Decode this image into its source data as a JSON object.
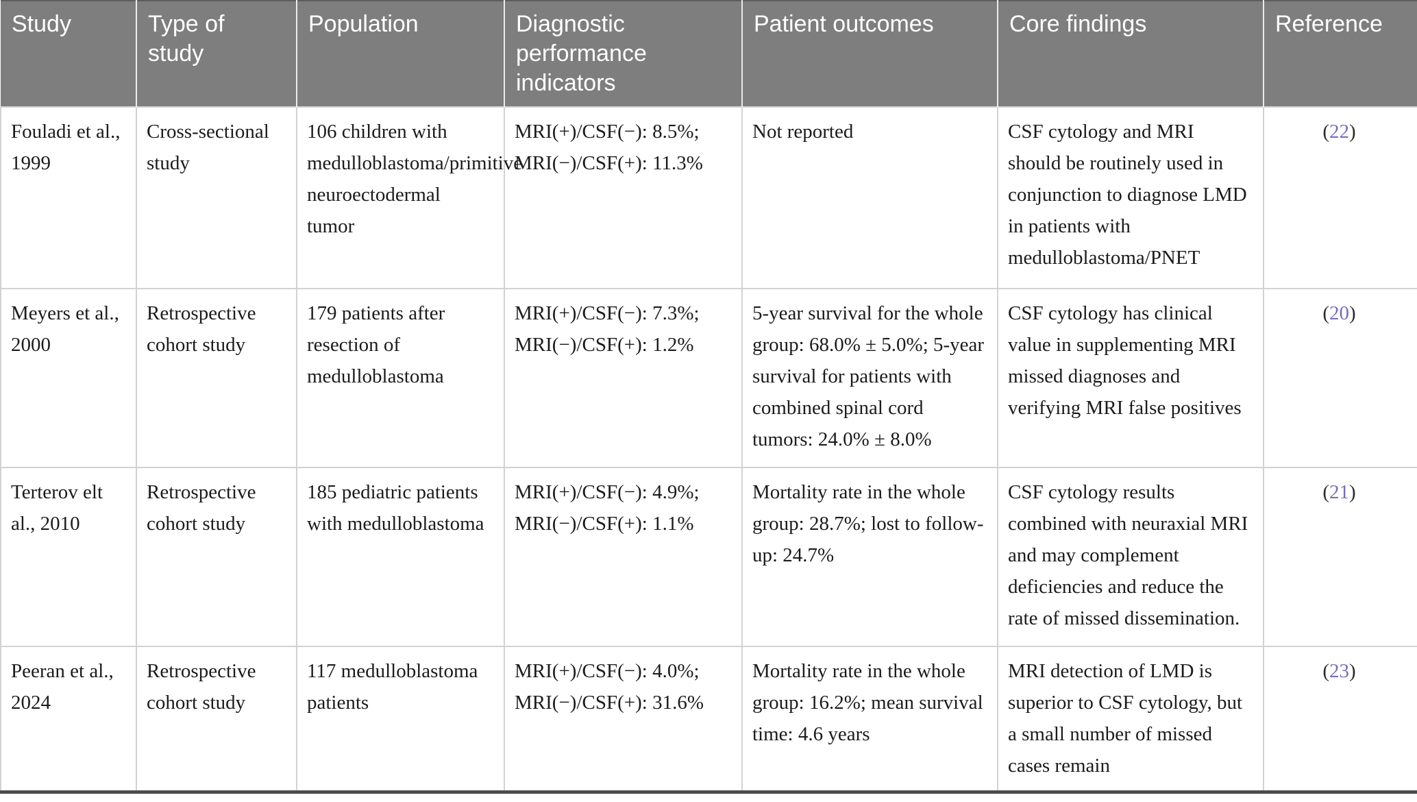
{
  "colors": {
    "header_background": "#7e7e7e",
    "header_text": "#ffffff",
    "body_text": "#1b1b1b",
    "reference_link": "#776cbb",
    "cell_border": "#d2d2d2",
    "table_bottom_border": "#4d4d4d"
  },
  "table": {
    "headers": [
      "Study",
      "Type of study",
      "Population",
      "Diagnostic performance indicators",
      "Patient outcomes",
      "Core findings",
      "Reference"
    ],
    "rows": [
      {
        "study": "Fouladi et al., 1999",
        "type": "Cross-sectional study",
        "population": "106 children with medulloblastoma/primitive neuroectodermal tumor",
        "diagnostics": [
          "MRI(+)/CSF(−): 8.5%;",
          "MRI(−)/CSF(+): 11.3%"
        ],
        "outcomes": "Not reported",
        "findings": "CSF cytology and MRI should be routinely used in conjunction to diagnose LMD in patients with medulloblastoma/PNET",
        "reference": {
          "open": "(",
          "number": "22",
          "close": ")"
        }
      },
      {
        "study": "Meyers et al., 2000",
        "type": "Retrospective cohort study",
        "population": "179 patients after resection of medulloblastoma",
        "diagnostics": [
          "MRI(+)/CSF(−): 7.3%;",
          "MRI(−)/CSF(+): 1.2%"
        ],
        "outcomes": "5-year survival for the whole group: 68.0% ± 5.0%; 5-year survival for patients with combined spinal cord tumors: 24.0% ± 8.0%",
        "findings": "CSF cytology has clinical value in supplementing MRI missed diagnoses and verifying MRI false positives",
        "reference": {
          "open": "(",
          "number": "20",
          "close": ")"
        }
      },
      {
        "study": "Terterov elt al., 2010",
        "type": "Retrospective cohort study",
        "population": "185 pediatric patients with medulloblastoma",
        "diagnostics": [
          "MRI(+)/CSF(−): 4.9%;",
          "MRI(−)/CSF(+): 1.1%"
        ],
        "outcomes": "Mortality rate in the whole group: 28.7%; lost to follow-up: 24.7%",
        "findings": "CSF cytology results combined with neuraxial MRI and may complement deficiencies and reduce the rate of missed dissemination.",
        "reference": {
          "open": "(",
          "number": "21",
          "close": ")"
        }
      },
      {
        "study": "Peeran et al., 2024",
        "type": "Retrospective cohort study",
        "population": "117 medulloblastoma patients",
        "diagnostics": [
          "MRI(+)/CSF(−): 4.0%;",
          "MRI(−)/CSF(+): 31.6%"
        ],
        "outcomes": "Mortality rate in the whole group: 16.2%; mean survival time: 4.6 years",
        "findings": "MRI detection of LMD is superior to CSF cytology, but a small number of missed cases remain",
        "reference": {
          "open": "(",
          "number": "23",
          "close": ")"
        }
      }
    ]
  }
}
